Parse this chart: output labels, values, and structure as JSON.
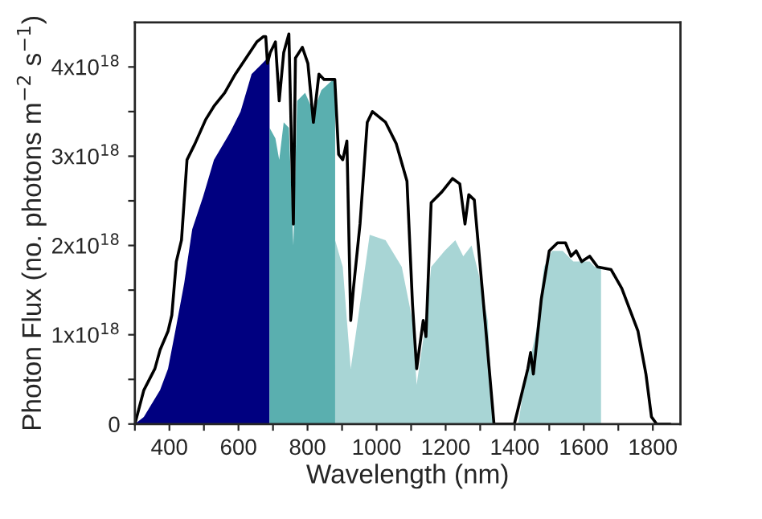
{
  "chart_data": {
    "type": "area",
    "xlabel": "Wavelength (nm)",
    "ylabel": "Photon Flux (no. photons m$^{−2}$ s$^{−1}$)",
    "xlim": [
      300,
      1880
    ],
    "ylim": [
      0,
      4.5e+18
    ],
    "xticks": [
      {
        "value": 300,
        "label": null
      },
      400,
      {
        "value": 500,
        "label": null
      },
      600,
      {
        "value": 700,
        "label": null
      },
      800,
      {
        "value": 900,
        "label": null
      },
      1000,
      {
        "value": 1100,
        "label": null
      },
      1200,
      {
        "value": 1300,
        "label": null
      },
      1400,
      {
        "value": 1500,
        "label": null
      },
      1600,
      {
        "value": 1700,
        "label": null
      },
      1800
    ],
    "yticks": [
      0,
      {
        "value": 5e+17,
        "label": null
      },
      {
        "value": 1e+18,
        "label": "1x10$^{18}$"
      },
      {
        "value": 1.5e+18,
        "label": null
      },
      {
        "value": 2e+18,
        "label": "2x10$^{18}$"
      },
      {
        "value": 2.5e+18,
        "label": null
      },
      {
        "value": 3e+18,
        "label": "3x10$^{18}$"
      },
      {
        "value": 3.5e+18,
        "label": null
      },
      {
        "value": 4e+18,
        "label": "4x10$^{18}$"
      }
    ],
    "grid": false,
    "legend": false,
    "series": [
      {
        "color": "#000080",
        "x": [
          300,
          326,
          373,
          396,
          420,
          443,
          466,
          497,
          529,
          575,
          606,
          638,
          669,
          684,
          690
        ],
        "values": [
          0,
          8e+16,
          3.8e+17,
          6.2e+17,
          1.1e+18,
          1.58e+18,
          2.18e+18,
          2.54e+18,
          2.96e+18,
          3.26e+18,
          3.5e+18,
          3.92e+18,
          4.04e+18,
          4.1e+18,
          4.1e+18
        ]
      },
      {
        "color": "#5aafaf",
        "x": [
          690,
          707,
          718,
          731,
          746,
          759,
          770,
          793,
          817,
          840,
          874,
          880
        ],
        "values": [
          3.32e+18,
          3.2e+18,
          2.96e+18,
          3.38e+18,
          3.32e+18,
          2e+18,
          3.62e+18,
          3.71e+18,
          3.5e+18,
          3.74e+18,
          3.86e+18,
          3.86e+18
        ]
      },
      {
        "color": "#a8d5d5",
        "x": [
          880,
          902,
          925,
          941,
          980,
          1026,
          1073,
          1104,
          1116,
          1143,
          1158,
          1197,
          1228,
          1251,
          1275,
          1298,
          1322,
          1337,
          1410,
          1423,
          1462,
          1485,
          1508,
          1539,
          1570,
          1617,
          1632,
          1650
        ],
        "values": [
          2.06e+18,
          1.76e+18,
          6.2e+17,
          1.04e+18,
          2.12e+18,
          2.06e+18,
          1.76e+18,
          1.16e+18,
          4.4e+17,
          1.16e+18,
          1.76e+18,
          1.94e+18,
          2.06e+18,
          1.88e+18,
          2e+18,
          1.64e+18,
          1.16e+18,
          0,
          0,
          3.2e+17,
          1.04e+18,
          1.76e+18,
          1.94e+18,
          1.94e+18,
          1.82e+18,
          1.82e+18,
          1.76e+18,
          1.76e+18
        ]
      },
      {
        "type": "line",
        "color": "#000000",
        "x": [
          300,
          326,
          358,
          373,
          396,
          407,
          420,
          435,
          451,
          474,
          505,
          529,
          560,
          591,
          622,
          653,
          672,
          679,
          684,
          692,
          707,
          718,
          731,
          746,
          759,
          765,
          785,
          801,
          817,
          833,
          848,
          879,
          890,
          902,
          914,
          925,
          933,
          952,
          973,
          988,
          1026,
          1057,
          1088,
          1104,
          1116,
          1135,
          1143,
          1158,
          1189,
          1220,
          1241,
          1256,
          1267,
          1283,
          1314,
          1340,
          1399,
          1438,
          1446,
          1454,
          1477,
          1500,
          1524,
          1547,
          1563,
          1578,
          1594,
          1617,
          1640,
          1679,
          1710,
          1757,
          1780,
          1796,
          1811,
          1850
        ],
        "values": [
          0,
          3.8e+17,
          6.2e+17,
          8.3e+17,
          1.04e+18,
          1.22e+18,
          1.82e+18,
          2.06e+18,
          2.96e+18,
          3.14e+18,
          3.41e+18,
          3.56e+18,
          3.71e+18,
          3.92e+18,
          4.1e+18,
          4.28e+18,
          4.34e+18,
          4.34e+18,
          4.04e+18,
          4.16e+18,
          4.28e+18,
          3.62e+18,
          4.16e+18,
          4.37e+18,
          2.24e+18,
          4.1e+18,
          4.22e+18,
          4.04e+18,
          3.38e+18,
          3.92e+18,
          3.86e+18,
          3.86e+18,
          3.02e+18,
          2.96e+18,
          3.17e+18,
          1.16e+18,
          1.52e+18,
          2.24e+18,
          3.38e+18,
          3.5e+18,
          3.38e+18,
          3.14e+18,
          2.72e+18,
          1.34e+18,
          6.2e+17,
          1.16e+18,
          9.8e+17,
          2.48e+18,
          2.6e+18,
          2.75e+18,
          2.69e+18,
          2.24e+18,
          2.57e+18,
          2.51e+18,
          1.16e+18,
          0,
          0,
          6.2e+17,
          8e+17,
          5.6e+17,
          1.4e+18,
          1.94e+18,
          2.03e+18,
          2.03e+18,
          1.88e+18,
          1.94e+18,
          1.82e+18,
          1.88e+18,
          1.76e+18,
          1.73e+18,
          1.52e+18,
          1.04e+18,
          5.6e+17,
          8e+16,
          0,
          0
        ]
      }
    ]
  }
}
